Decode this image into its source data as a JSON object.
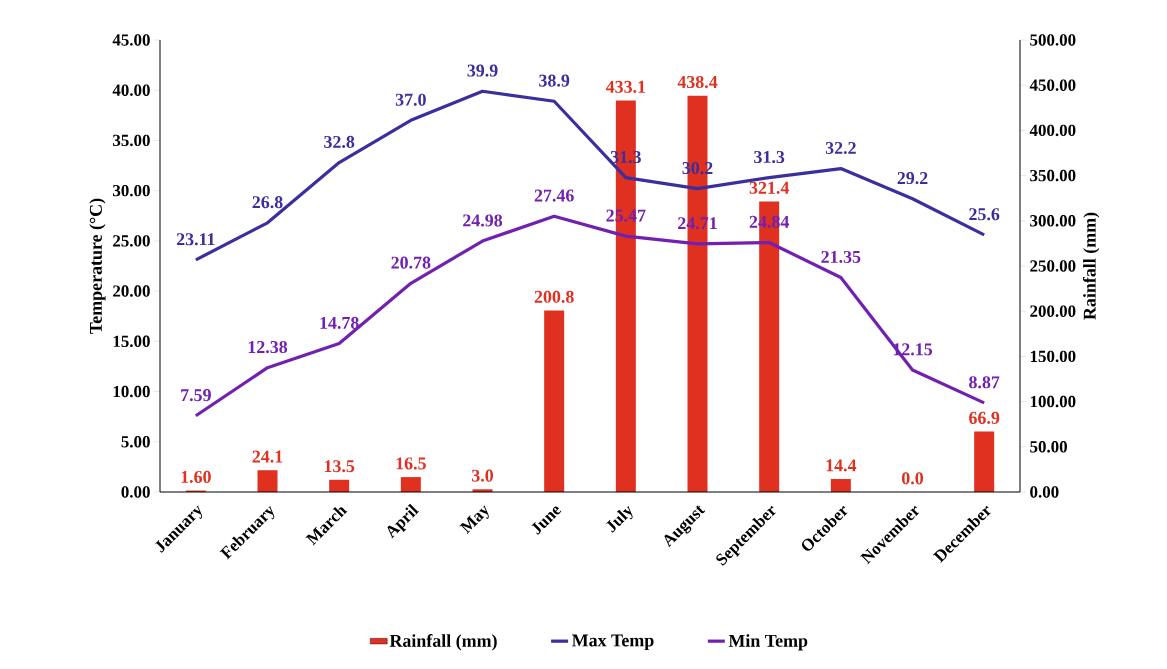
{
  "chart_data": {
    "type": "bar",
    "categories": [
      "January",
      "February",
      "March",
      "April",
      "May",
      "June",
      "July",
      "August",
      "September",
      "October",
      "November",
      "December"
    ],
    "ylabel": "Temperature (°C)",
    "y2label": "Rainfall (mm)",
    "ylim": [
      0,
      45
    ],
    "yticks": [
      {
        "value": 0,
        "label": "0.00"
      },
      {
        "value": 5,
        "label": "5.00"
      },
      {
        "value": 10,
        "label": "10.00"
      },
      {
        "value": 15,
        "label": "15.00"
      },
      {
        "value": 20,
        "label": "20.00"
      },
      {
        "value": 25,
        "label": "25.00"
      },
      {
        "value": 30,
        "label": "30.00"
      },
      {
        "value": 35,
        "label": "35.00"
      },
      {
        "value": 40,
        "label": "40.00"
      },
      {
        "value": 45,
        "label": "45.00"
      }
    ],
    "y2lim": [
      0,
      500
    ],
    "y2ticks": [
      {
        "value": 0,
        "label": "0.00"
      },
      {
        "value": 50,
        "label": "50.00"
      },
      {
        "value": 100,
        "label": "100.00"
      },
      {
        "value": 150,
        "label": "150.00"
      },
      {
        "value": 200,
        "label": "200.00"
      },
      {
        "value": 250,
        "label": "250.00"
      },
      {
        "value": 300,
        "label": "300.00"
      },
      {
        "value": 350,
        "label": "350.00"
      },
      {
        "value": 400,
        "label": "400.00"
      },
      {
        "value": 450,
        "label": "450.00"
      },
      {
        "value": 500,
        "label": "500.00"
      }
    ],
    "legend": "bottom",
    "grid": false,
    "series": [
      {
        "name": "Rainfall (mm)",
        "axis": "y2",
        "color": "#e03020",
        "values": [
          1.6,
          24.1,
          13.5,
          16.5,
          3.0,
          200.8,
          433.1,
          438.4,
          321.4,
          14.4,
          0.0,
          66.9
        ],
        "value_labels": [
          "1.60",
          "24.1",
          "13.5",
          "16.5",
          "3.0",
          "200.8",
          "433.1",
          "438.4",
          "321.4",
          "14.4",
          "0.0",
          "66.9"
        ]
      },
      {
        "name": "Max Temp",
        "type": "line",
        "color": "#3b2f9e",
        "values": [
          23.11,
          26.8,
          32.8,
          37.0,
          39.9,
          38.9,
          31.3,
          30.2,
          31.3,
          32.2,
          29.2,
          25.6
        ],
        "value_labels": [
          "23.11",
          "26.8",
          "32.8",
          "37.0",
          "39.9",
          "38.9",
          "31.3",
          "30.2",
          "31.3",
          "32.2",
          "29.2",
          "25.6"
        ]
      },
      {
        "name": "Min Temp",
        "type": "line",
        "color": "#7120b0",
        "values": [
          7.59,
          12.38,
          14.78,
          20.78,
          24.98,
          27.46,
          25.47,
          24.71,
          24.84,
          21.35,
          12.15,
          8.87
        ],
        "value_labels": [
          "7.59",
          "12.38",
          "14.78",
          "20.78",
          "24.98",
          "27.46",
          "25.47",
          "24.71",
          "24.84",
          "21.35",
          "12.15",
          "8.87"
        ]
      }
    ]
  }
}
